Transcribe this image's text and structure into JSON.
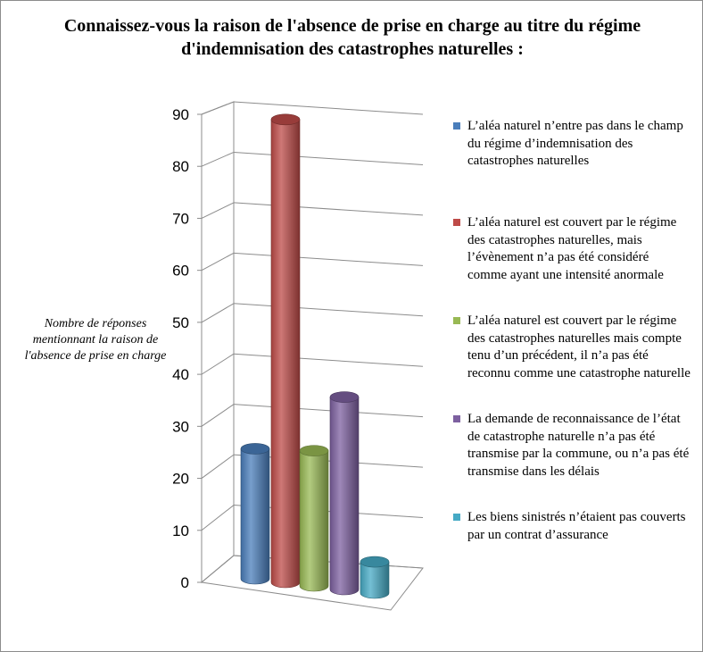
{
  "title": "Connaissez-vous la raison de l'absence de prise en charge au titre du régime d'indemnisation des catastrophes naturelles :",
  "chart_data": {
    "type": "bar",
    "style": "3d-cylinder",
    "title": "Connaissez-vous la raison de l'absence de prise en charge au titre du régime d'indemnisation des catastrophes naturelles :",
    "ylabel": "Nombre de réponses mentionnant la raison de l'absence de prise en charge",
    "ylim": [
      0,
      90
    ],
    "yticks": [
      "0",
      "10",
      "20",
      "30",
      "40",
      "50",
      "60",
      "70",
      "80",
      "90"
    ],
    "grid": true,
    "legend_position": "right",
    "series": [
      {
        "name": "L’aléa naturel n’entre pas dans le champ du régime d’indemnisation des catastrophes naturelles",
        "value": 25,
        "color": "#4a7ebb"
      },
      {
        "name": "L’aléa naturel est couvert par le régime des catastrophes naturelles, mais l’évènement n’a pas été considéré comme ayant une intensité anormale",
        "value": 89,
        "color": "#be4b48"
      },
      {
        "name": "L’aléa naturel est couvert par le régime des catastrophes naturelles mais compte tenu d’un précédent, il n’a pas été reconnu comme une catastrophe naturelle",
        "value": 26,
        "color": "#98b954"
      },
      {
        "name": "La demande de reconnaissance de l’état de catastrophe naturelle n’a pas été transmise par la commune, ou n’a pas été transmise dans les délais",
        "value": 37,
        "color": "#7d60a0"
      },
      {
        "name": "Les biens sinistrés n’étaient pas couverts par un contrat d’assurance",
        "value": 6,
        "color": "#46aac5"
      }
    ]
  }
}
